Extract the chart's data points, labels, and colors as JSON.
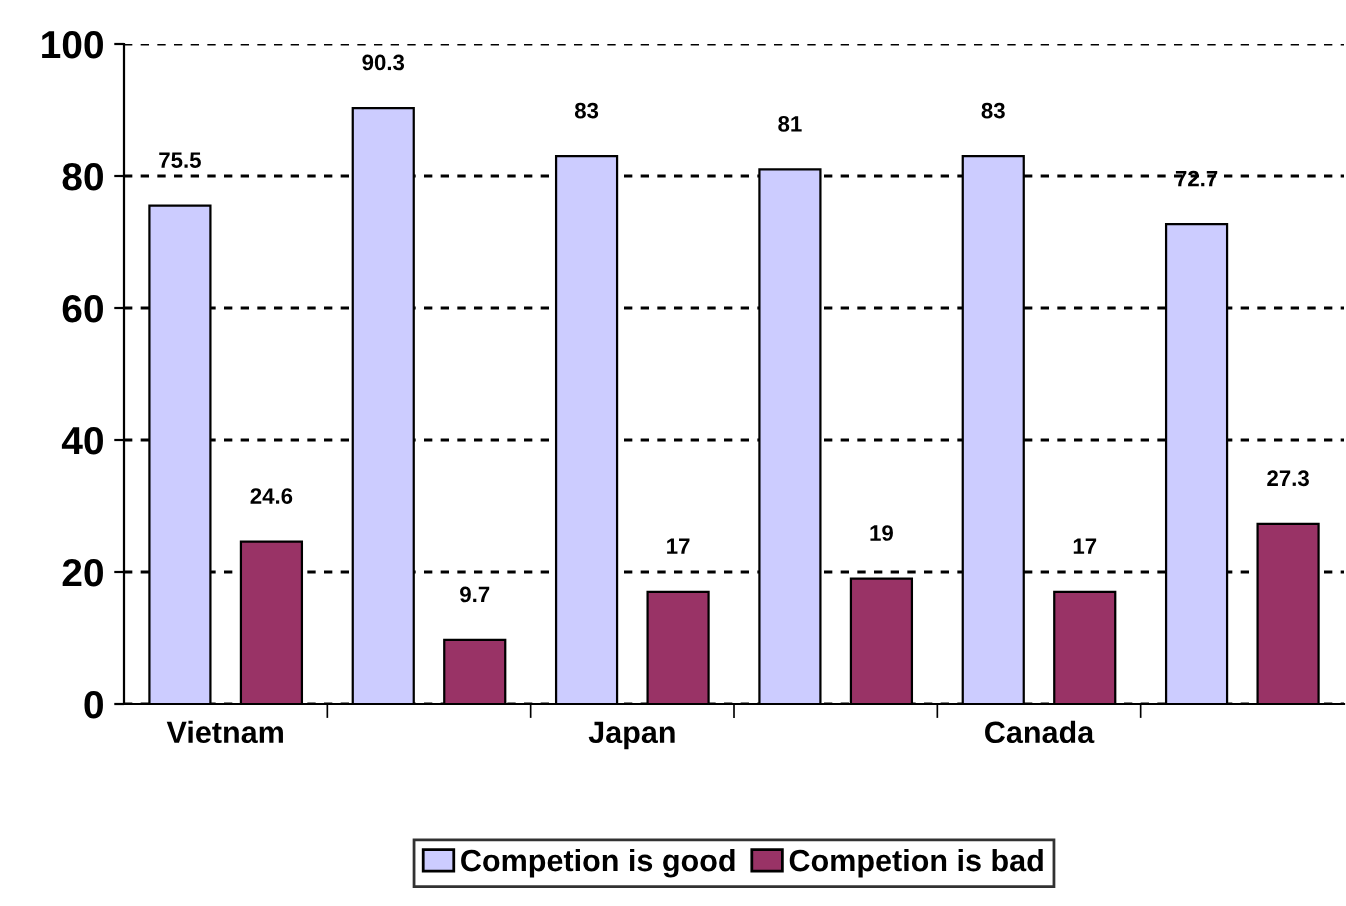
{
  "chart_data": {
    "type": "bar",
    "categories": [
      "Vietnam",
      null,
      "Japan",
      null,
      "Canada",
      null
    ],
    "series": [
      {
        "name": "Competion is good",
        "color": "#ccccff",
        "values": [
          75.5,
          90.3,
          83,
          81,
          83,
          72.7
        ]
      },
      {
        "name": "Competion is bad",
        "color": "#993366",
        "values": [
          24.6,
          9.7,
          17,
          19,
          17,
          27.3
        ]
      }
    ],
    "ylim": [
      0,
      100
    ],
    "yticks": [
      0,
      20,
      40,
      60,
      80,
      100
    ],
    "grid": "y",
    "legend": "bottom",
    "data_labels": true
  }
}
